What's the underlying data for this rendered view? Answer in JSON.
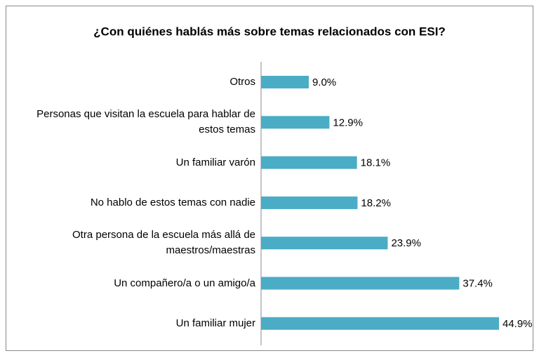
{
  "chart_data": {
    "type": "bar",
    "orientation": "horizontal",
    "title": "¿Con quiénes hablás más sobre temas relacionados con ESI?",
    "categories": [
      "Otros",
      "Personas que visitan la escuela para hablar de estos temas",
      "Un familiar varón",
      "No hablo de estos temas con nadie",
      "Otra persona de la escuela más allá de maestros/maestras",
      "Un compañero/a o un amigo/a",
      "Un familiar mujer"
    ],
    "values": [
      9.0,
      12.9,
      18.1,
      18.2,
      23.9,
      37.4,
      44.9
    ],
    "value_labels": [
      "9.0%",
      "12.9%",
      "18.1%",
      "18.2%",
      "23.9%",
      "37.4%",
      "44.9%"
    ],
    "color": "#4bacc6"
  }
}
